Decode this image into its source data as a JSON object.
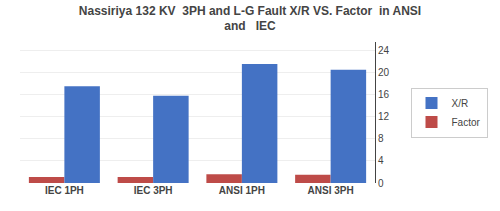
{
  "chart_data": {
    "type": "bar",
    "title": "Nassiriya 132 KV  3PH and L-G Fault X/R VS. Factor  in ANSI\nand   IEC",
    "categories": [
      "IEC 1PH",
      "IEC 3PH",
      "ANSI 1PH",
      "ANSI 3PH"
    ],
    "series": [
      {
        "name": "Factor",
        "color": "#BE4B48",
        "values": [
          1.1,
          1.1,
          1.6,
          1.5
        ]
      },
      {
        "name": "X/R",
        "color": "#4472C4",
        "values": [
          17.5,
          15.8,
          21.5,
          20.5
        ]
      }
    ],
    "ylim": [
      0,
      25.5
    ],
    "yticks": [
      0,
      4,
      8,
      12,
      16,
      20,
      24
    ],
    "grid": true,
    "legend": "right"
  }
}
